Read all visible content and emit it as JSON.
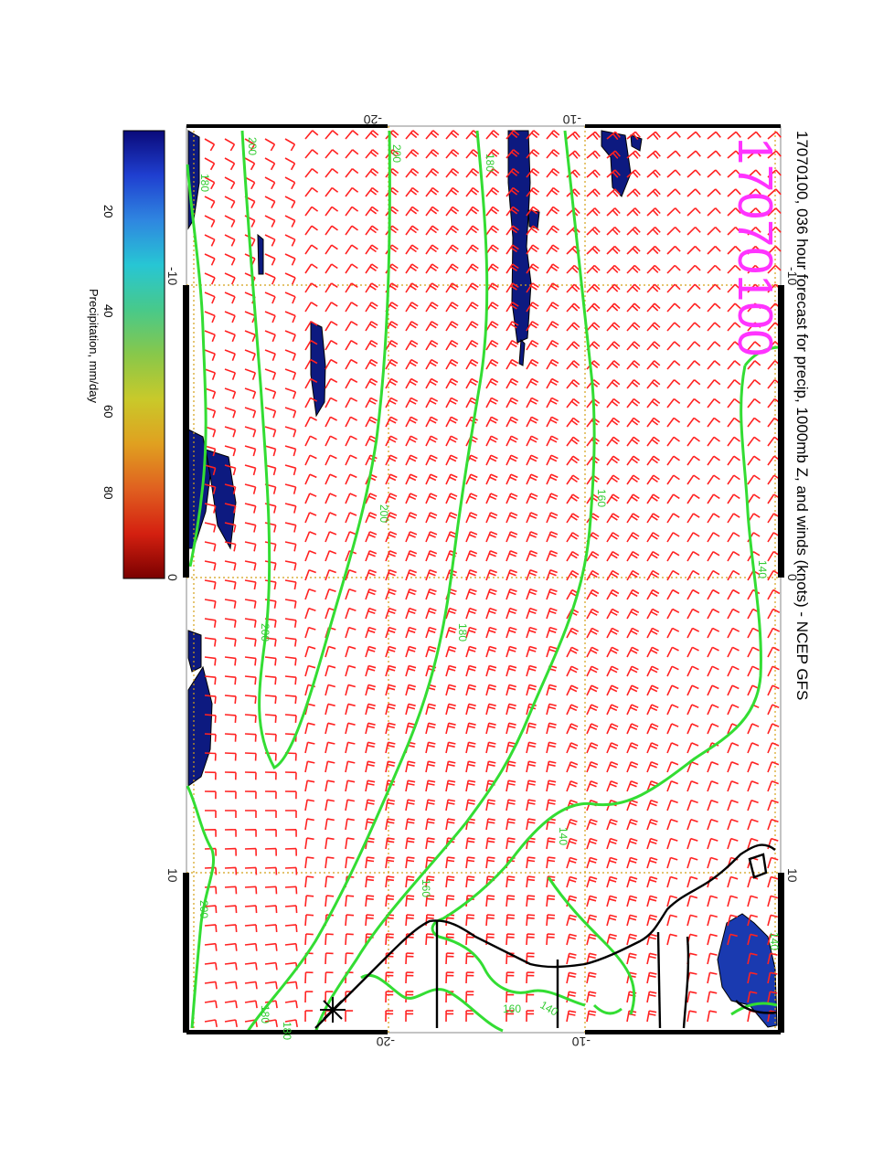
{
  "title": "17070100, 036 hour forecast for precip, 1000mb Z, and winds (knots) - NCEP GFS",
  "date_stamp": "17070100",
  "colorbar": {
    "label": "Precipitation, mm/day",
    "ticks": [
      "20",
      "40",
      "60",
      "80"
    ],
    "colors": [
      "#0a0a7a",
      "#1f3fd0",
      "#2f86e0",
      "#27c6d4",
      "#48c98a",
      "#88c84a",
      "#c9c92a",
      "#e0a020",
      "#e06020",
      "#d42010",
      "#7a0000"
    ]
  },
  "axes": {
    "top_ticks": [
      "-20",
      "-10"
    ],
    "bottom_ticks": [
      "-20",
      "-10"
    ],
    "left_ticks": [
      "-10",
      "0",
      "10"
    ],
    "right_ticks": [
      "-10",
      "0",
      "10"
    ]
  },
  "contour_labels": [
    "200",
    "200",
    "180",
    "200",
    "180",
    "160",
    "200",
    "200",
    "180",
    "180",
    "160",
    "160",
    "140",
    "140",
    "140",
    "140",
    "180"
  ],
  "colors": {
    "barb": "#ff2222",
    "contour": "#33dd33",
    "coast": "#000000",
    "grid": "#d4a017",
    "precip": "#0d1a80"
  }
}
